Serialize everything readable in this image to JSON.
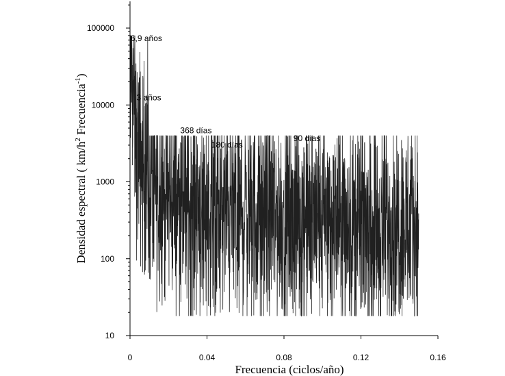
{
  "chart_data": {
    "type": "line",
    "xlabel": "Frecuencia (ciclos/año)",
    "ylabel_parts": {
      "main": "Densidad espectral ( km/h",
      "sup1": "2",
      "mid": " Frecuencia",
      "sup2": "-1",
      "end": ")"
    },
    "x_scale": "linear",
    "y_scale": "log",
    "xlim": [
      0,
      0.16
    ],
    "ylim": [
      10,
      250000
    ],
    "x_ticks": [
      0,
      0.04,
      0.08,
      0.12,
      0.16
    ],
    "x_tick_labels": [
      "0",
      "0.04",
      "0.08",
      "0.12",
      "0.16"
    ],
    "y_ticks": [
      10,
      100,
      1000,
      10000,
      100000
    ],
    "y_tick_labels": [
      "10",
      "100",
      "1000",
      "10000",
      "100000"
    ],
    "grid": false,
    "series_color": "#202020",
    "annotations": [
      {
        "text": "6,9 años",
        "x": 0.0003,
        "y": 68000
      },
      {
        "text": "3 años",
        "x": 0.0034,
        "y": 11500
      },
      {
        "text": "368 días",
        "x": 0.0261,
        "y": 4300
      },
      {
        "text": "180 días",
        "x": 0.0422,
        "y": 2800
      },
      {
        "text": "90 días",
        "x": 0.0849,
        "y": 3400
      }
    ],
    "series": [
      {
        "values_note": "dense spectrum; envelope values",
        "x": [
          0.0001,
          0.0004,
          0.0008,
          0.0012,
          0.0016,
          0.002,
          0.0025,
          0.003,
          0.0035,
          0.004,
          0.005,
          0.006,
          0.007,
          0.008,
          0.009,
          0.01,
          0.012,
          0.014,
          0.016,
          0.018,
          0.02,
          0.024,
          0.028,
          0.032,
          0.036,
          0.04,
          0.044,
          0.048,
          0.052,
          0.056,
          0.06,
          0.064,
          0.068,
          0.072,
          0.076,
          0.08,
          0.084,
          0.088,
          0.092,
          0.096,
          0.1,
          0.104,
          0.108,
          0.112,
          0.116,
          0.12,
          0.124,
          0.128,
          0.132,
          0.136,
          0.14,
          0.144,
          0.148,
          0.15
        ],
        "y": [
          40000,
          75000,
          25000,
          32000,
          15000,
          9500,
          6000,
          4000,
          3000,
          2500,
          2200,
          1800,
          1500,
          1300,
          1200,
          1100,
          900,
          850,
          800,
          700,
          650,
          600,
          520,
          500,
          480,
          450,
          430,
          420,
          410,
          400,
          390,
          380,
          370,
          360,
          350,
          340,
          335,
          330,
          325,
          320,
          315,
          310,
          305,
          300,
          300,
          295,
          290,
          290,
          285,
          280,
          280,
          275,
          270,
          270
        ],
        "spike_peaks": [
          {
            "x": 0.0003,
            "y": 75000
          },
          {
            "x": 0.0013,
            "y": 33000
          },
          {
            "x": 0.0036,
            "y": 9000
          },
          {
            "x": 0.0346,
            "y": 3900
          },
          {
            "x": 0.0472,
            "y": 2700
          },
          {
            "x": 0.0734,
            "y": 2500
          },
          {
            "x": 0.0903,
            "y": 2800
          },
          {
            "x": 0.0966,
            "y": 2700
          }
        ],
        "noise_floor_min": 18,
        "noise_floor_max": 2500
      }
    ]
  }
}
